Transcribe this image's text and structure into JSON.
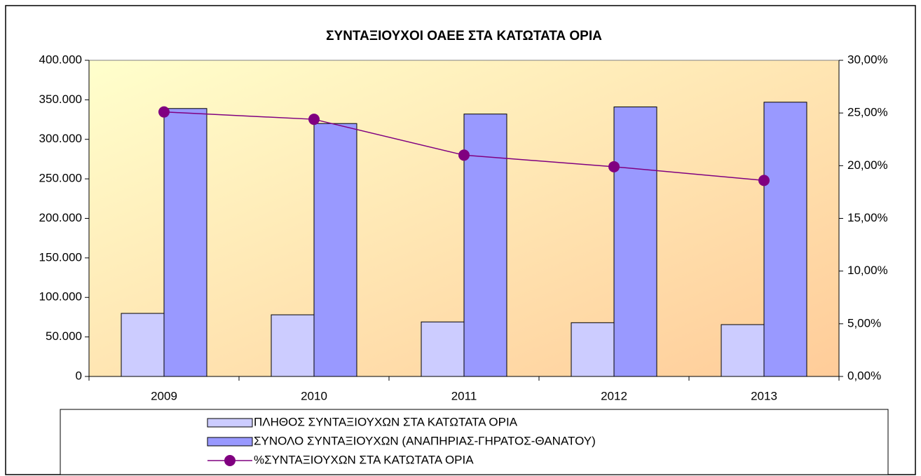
{
  "chart_data": {
    "type": "bar",
    "title": "ΣΥΝΤΑΞΙΟΥΧΟΙ ΟΑΕΕ ΣΤΑ ΚΑΤΩΤΑΤΑ ΟΡΙΑ",
    "categories": [
      "2009",
      "2010",
      "2011",
      "2012",
      "2013"
    ],
    "series": [
      {
        "name": "ΠΛΗΘΟΣ ΣΥΝΤΑΞΙΟΥΧΩΝ ΣΤΑ ΚΑΤΩΤΑΤΑ ΟΡΙΑ",
        "color": "#ccccff",
        "type": "bar",
        "values": [
          79800,
          78000,
          69000,
          68000,
          65600
        ]
      },
      {
        "name": "ΣΥΝΟΛΟ ΣΥΝΤΑΞΙΟΥΧΩΝ (ΑΝΑΠΗΡΙΑΣ-ΓΗΡΑΤΟΣ-ΘΑΝΑΤΟΥ)",
        "color": "#9999ff",
        "type": "bar",
        "values": [
          339000,
          320000,
          332000,
          341000,
          347000
        ]
      },
      {
        "name": "%ΣΥΝΤΑΞΙΟΥΧΩΝ ΣΤΑ ΚΑΤΩΤΑΤΑ ΟΡΙΑ",
        "color": "#800080",
        "type": "line",
        "axis": "y2",
        "values": [
          25.1,
          24.4,
          21.0,
          19.9,
          18.6
        ]
      }
    ],
    "ylim": [
      0,
      400000
    ],
    "yticks": [
      {
        "value": 0,
        "label": "0"
      },
      {
        "value": 50000,
        "label": "50.000"
      },
      {
        "value": 100000,
        "label": "100.000"
      },
      {
        "value": 150000,
        "label": "150.000"
      },
      {
        "value": 200000,
        "label": "200.000"
      },
      {
        "value": 250000,
        "label": "250.000"
      },
      {
        "value": 300000,
        "label": "300.000"
      },
      {
        "value": 350000,
        "label": "350.000"
      },
      {
        "value": 400000,
        "label": "400.000"
      }
    ],
    "y2lim": [
      0,
      30
    ],
    "y2ticks": [
      {
        "value": 0,
        "label": "0,00%"
      },
      {
        "value": 5,
        "label": "5,00%"
      },
      {
        "value": 10,
        "label": "10,00%"
      },
      {
        "value": 15,
        "label": "15,00%"
      },
      {
        "value": 20,
        "label": "20,00%"
      },
      {
        "value": 25,
        "label": "25,00%"
      },
      {
        "value": 30,
        "label": "30,00%"
      }
    ]
  }
}
